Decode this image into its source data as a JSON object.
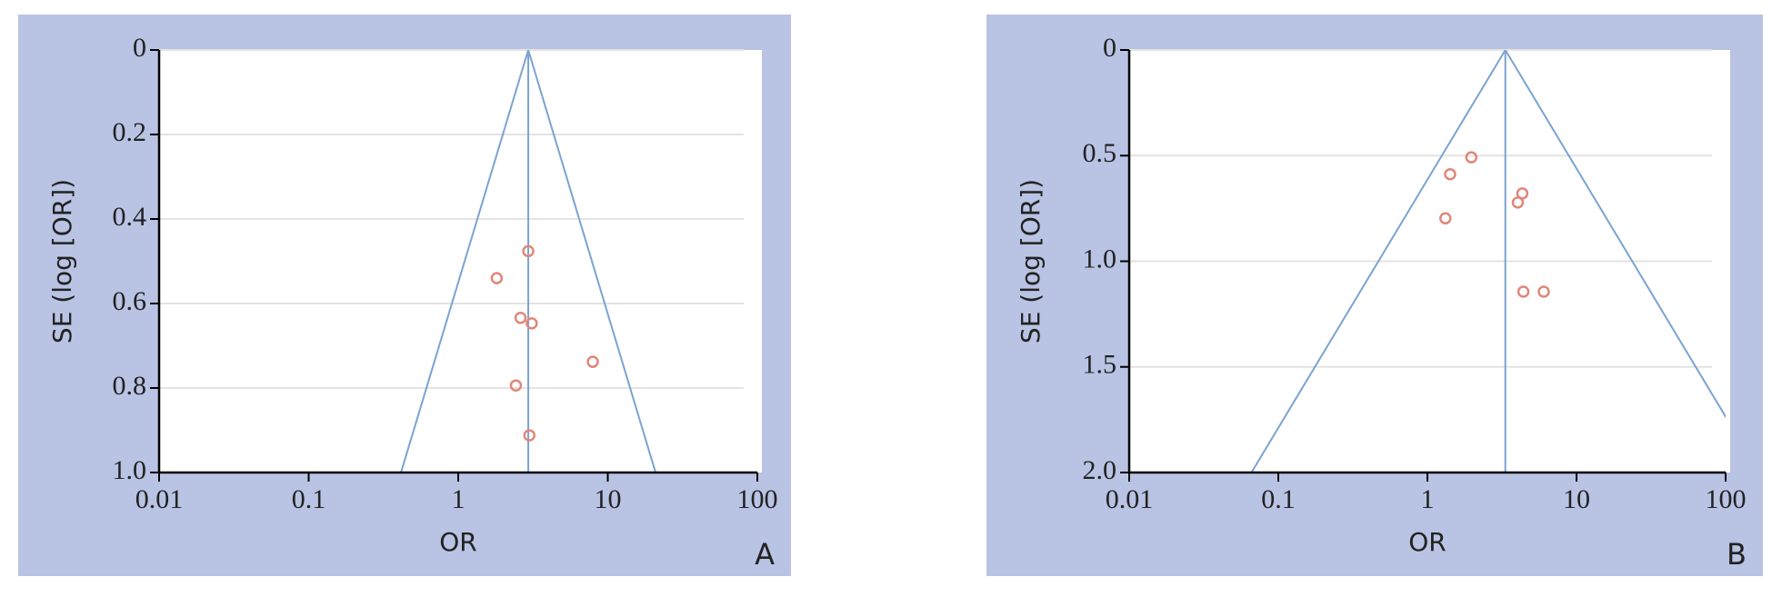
{
  "chart_data": [
    {
      "type": "funnel",
      "panel_label": "A",
      "x_label": "OR",
      "y_label": "SE (log [OR])",
      "x": [
        2.94,
        1.81,
        2.61,
        3.1,
        7.94,
        2.43,
        2.99
      ],
      "y": [
        0.476,
        0.54,
        0.634,
        0.647,
        0.738,
        0.794,
        0.912
      ],
      "summary": 2.94,
      "xscale": "log",
      "y_inverted": true,
      "xlim": [
        0.01,
        100
      ],
      "xticks": [
        0.01,
        0.1,
        1,
        10,
        100
      ],
      "ylim": [
        0,
        1
      ],
      "yticks": [
        0,
        0.2,
        0.4,
        0.6,
        0.8,
        {
          "value": 1,
          "label": "1.0"
        }
      ],
      "grid": true,
      "point_color": "#e0877a",
      "line_color": "#7ba3cf",
      "background": "#b9c3e3"
    },
    {
      "type": "funnel",
      "panel_label": "B",
      "x_label": "OR",
      "y_label": "SE (log [OR])",
      "x": [
        1.97,
        1.42,
        4.33,
        4.04,
        1.32,
        4.4,
        6.03
      ],
      "y": [
        0.508,
        0.588,
        0.679,
        0.722,
        0.797,
        1.144,
        1.144
      ],
      "summary": 3.33,
      "xscale": "log",
      "y_inverted": true,
      "xlim": [
        0.01,
        100
      ],
      "xticks": [
        0.01,
        0.1,
        1,
        10,
        100
      ],
      "ylim": [
        0,
        2
      ],
      "yticks": [
        0,
        0.5,
        {
          "value": 1,
          "label": "1.0"
        },
        1.5,
        {
          "value": 2,
          "label": "2.0"
        }
      ],
      "grid": true,
      "point_color": "#e0877a",
      "line_color": "#7ba3cf",
      "background": "#b9c3e3"
    }
  ]
}
